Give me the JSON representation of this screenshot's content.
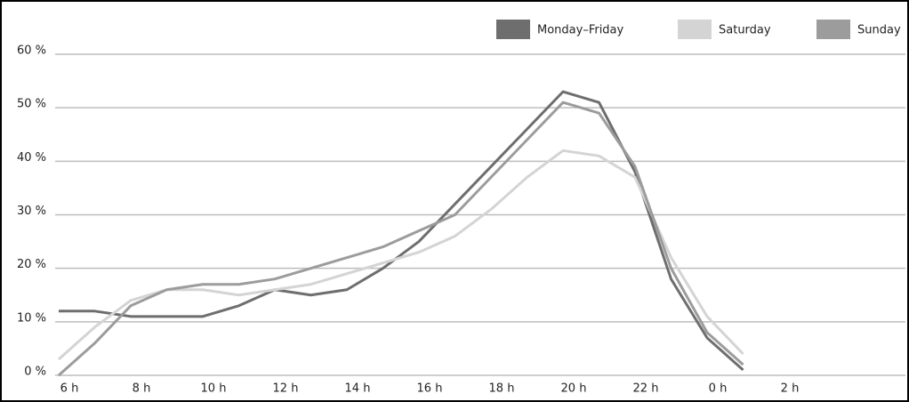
{
  "chart_data": {
    "type": "line",
    "categories": [
      "6 h",
      null,
      "8 h",
      null,
      "10 h",
      null,
      "12 h",
      null,
      "14 h",
      null,
      "16 h",
      null,
      "18 h",
      null,
      "20 h",
      null,
      "22 h",
      null,
      "0 h",
      null,
      "2 h",
      null
    ],
    "series": [
      {
        "name": "Monday–Friday",
        "color": "#6e6e6e",
        "values": [
          12,
          12,
          11,
          11,
          11,
          13,
          16,
          15,
          16,
          20,
          25,
          32,
          39,
          46,
          53,
          51,
          38,
          18,
          7,
          1,
          null,
          null
        ]
      },
      {
        "name": "Saturday",
        "color": "#d4d4d4",
        "values": [
          3,
          9,
          14,
          16,
          16,
          15,
          16,
          17,
          19,
          21,
          23,
          26,
          31,
          37,
          42,
          41,
          37,
          22,
          11,
          4,
          null,
          null
        ]
      },
      {
        "name": "Sunday",
        "color": "#9c9c9c",
        "values": [
          0,
          6,
          13,
          16,
          17,
          17,
          18,
          20,
          22,
          24,
          27,
          30,
          37,
          44,
          51,
          49,
          39,
          20,
          8,
          2,
          null,
          null
        ]
      }
    ],
    "ylim": [
      0,
      62
    ],
    "yticks": [
      {
        "value": 0,
        "label": "0 %"
      },
      {
        "value": 10,
        "label": "10 %"
      },
      {
        "value": 20,
        "label": "20 %"
      },
      {
        "value": 30,
        "label": "30 %"
      },
      {
        "value": 40,
        "label": "40 %"
      },
      {
        "value": 50,
        "label": "50 %"
      },
      {
        "value": 60,
        "label": "60 %"
      }
    ],
    "grid": true,
    "legend": "top-right"
  }
}
